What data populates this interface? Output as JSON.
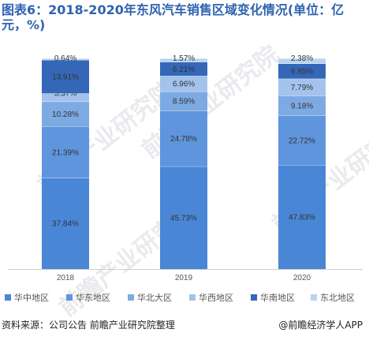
{
  "title": "图表6：2018-2020年东风汽车销售区域变化情况(单位：亿元，%)",
  "chart_data": {
    "type": "bar",
    "stacked": true,
    "categories": [
      "2018",
      "2019",
      "2020"
    ],
    "series": [
      {
        "name": "华中地区",
        "values": [
          37.84,
          45.73,
          47.83
        ],
        "labels": [
          "37.84%",
          "45.73%",
          "47.83%"
        ],
        "color": "#4a86d6"
      },
      {
        "name": "华东地区",
        "values": [
          21.39,
          24.78,
          22.72
        ],
        "labels": [
          "21.39%",
          "24.78%",
          "22.72%"
        ],
        "color": "#5f95dc"
      },
      {
        "name": "华北大区",
        "values": [
          10.28,
          8.59,
          9.18
        ],
        "labels": [
          "10.28%",
          "8.59%",
          "9.18%"
        ],
        "color": "#7eaae3"
      },
      {
        "name": "华西地区",
        "values": [
          3.37,
          6.96,
          7.79
        ],
        "labels": [
          "3.37%",
          "6.96%",
          "7.79%"
        ],
        "color": "#a3c3ec"
      },
      {
        "name": "华南地区",
        "values": [
          13.91,
          6.21,
          6.95
        ],
        "labels": [
          "13.91%",
          "6.21%",
          "6.95%"
        ],
        "color": "#3567b8"
      },
      {
        "name": "东北地区",
        "values": [
          0.64,
          1.57,
          2.38
        ],
        "labels": [
          "0.64%",
          "1.57%",
          "2.38%"
        ],
        "color": "#b9d3f3"
      }
    ],
    "legend_position": "bottom",
    "grid": false
  },
  "legend": {
    "items": [
      {
        "label": "华中地区",
        "color": "#4a86d6"
      },
      {
        "label": "华东地区",
        "color": "#5f95dc"
      },
      {
        "label": "华北大区",
        "color": "#7eaae3"
      },
      {
        "label": "华西地区",
        "color": "#a3c3ec"
      },
      {
        "label": "华南地区",
        "color": "#3567b8"
      },
      {
        "label": "东北地区",
        "color": "#b9d3f3"
      }
    ]
  },
  "footer": {
    "source": "资料来源：公司公告 前瞻产业研究院整理",
    "credit": "@前瞻经济学人APP"
  },
  "watermark": {
    "text": "前瞻产业研究院"
  }
}
